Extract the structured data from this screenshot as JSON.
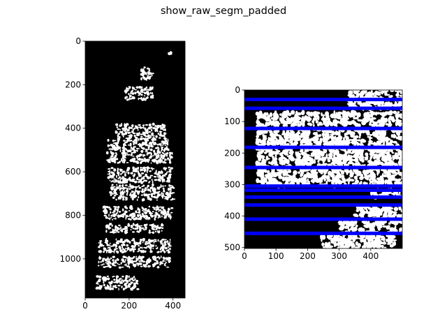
{
  "figure": {
    "title": "show_raw_segm_padded"
  },
  "chart_data": [
    {
      "type": "image",
      "title": "",
      "xlabel": "",
      "ylabel": "",
      "image_size": [
        455,
        1180
      ],
      "xlim": [
        0,
        455
      ],
      "ylim": [
        1180,
        0
      ],
      "xticks": [
        0,
        200,
        400
      ],
      "yticks": [
        0,
        200,
        400,
        600,
        800,
        1000
      ],
      "background": "#000000",
      "ink": "#ffffff",
      "ink_regions": [
        {
          "x": 380,
          "y": 50,
          "w": 15,
          "h": 10
        },
        {
          "x": 250,
          "y": 120,
          "w": 60,
          "h": 60
        },
        {
          "x": 180,
          "y": 210,
          "w": 130,
          "h": 60
        },
        {
          "x": 140,
          "y": 380,
          "w": 230,
          "h": 70
        },
        {
          "x": 100,
          "y": 450,
          "w": 280,
          "h": 60
        },
        {
          "x": 100,
          "y": 510,
          "w": 300,
          "h": 50
        },
        {
          "x": 105,
          "y": 580,
          "w": 290,
          "h": 70
        },
        {
          "x": 115,
          "y": 660,
          "w": 290,
          "h": 70
        },
        {
          "x": 80,
          "y": 760,
          "w": 320,
          "h": 60
        },
        {
          "x": 95,
          "y": 840,
          "w": 260,
          "h": 40
        },
        {
          "x": 60,
          "y": 910,
          "w": 330,
          "h": 60
        },
        {
          "x": 60,
          "y": 990,
          "w": 330,
          "h": 50
        },
        {
          "x": 50,
          "y": 1080,
          "w": 190,
          "h": 60
        }
      ]
    },
    {
      "type": "image",
      "title": "",
      "xlabel": "",
      "ylabel": "",
      "image_size": [
        500,
        503
      ],
      "xlim": [
        0,
        500
      ],
      "ylim": [
        503,
        0
      ],
      "xticks": [
        0,
        100,
        200,
        300,
        400
      ],
      "yticks": [
        0,
        100,
        200,
        300,
        400,
        500
      ],
      "background": "#000000",
      "ink": "#ffffff",
      "line_color": "#0000ff",
      "line_rows": [
        30,
        58,
        122,
        182,
        246,
        305,
        318,
        340,
        365,
        410,
        455
      ],
      "ink_regions": [
        {
          "x": 330,
          "y": 0,
          "w": 170,
          "h": 60
        },
        {
          "x": 40,
          "y": 70,
          "w": 460,
          "h": 45
        },
        {
          "x": 40,
          "y": 125,
          "w": 460,
          "h": 55
        },
        {
          "x": 40,
          "y": 185,
          "w": 460,
          "h": 58
        },
        {
          "x": 40,
          "y": 250,
          "w": 460,
          "h": 55
        },
        {
          "x": 400,
          "y": 320,
          "w": 100,
          "h": 20
        },
        {
          "x": 350,
          "y": 370,
          "w": 150,
          "h": 40
        },
        {
          "x": 300,
          "y": 415,
          "w": 200,
          "h": 40
        },
        {
          "x": 240,
          "y": 460,
          "w": 240,
          "h": 43
        }
      ]
    }
  ]
}
